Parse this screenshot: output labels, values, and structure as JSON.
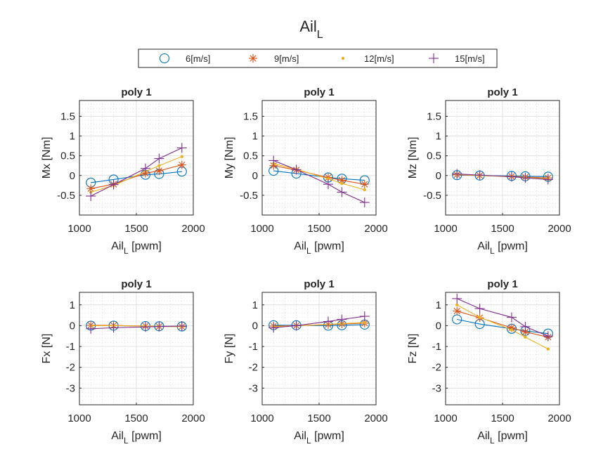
{
  "figure": {
    "title_main": "Ail",
    "title_sub": "L"
  },
  "legend": {
    "entries": [
      "6[m/s]",
      "9[m/s]",
      "12[m/s]",
      "15[m/s]"
    ]
  },
  "colors": {
    "6[m/s]": "#0072BD",
    "9[m/s]": "#D95319",
    "12[m/s]": "#EDB120",
    "15[m/s]": "#7E2F8E"
  },
  "markers": {
    "6[m/s]": "circle",
    "9[m/s]": "asterisk",
    "12[m/s]": "point",
    "15[m/s]": "plus"
  },
  "chart_data": [
    {
      "type": "line",
      "title": "poly 1",
      "xlabel_main": "Ail",
      "xlabel_sub": "L",
      "xlabel_rest": " [pwm]",
      "ylabel": "Mx [Nm]",
      "xlim": [
        1000,
        2000
      ],
      "ylim": [
        -1,
        1.9
      ],
      "xticks": [
        1000,
        1500,
        2000
      ],
      "yticks": [
        -0.5,
        0,
        0.5,
        1,
        1.5
      ],
      "ytick_labels": [
        "-0.5",
        "0",
        "0.5",
        "1",
        "1.5"
      ],
      "x": [
        1100,
        1300,
        1580,
        1700,
        1900
      ],
      "series": [
        {
          "name": "6[m/s]",
          "values": [
            -0.18,
            -0.1,
            0.02,
            0.04,
            0.1
          ]
        },
        {
          "name": "9[m/s]",
          "values": [
            -0.33,
            -0.22,
            0.06,
            0.12,
            0.27
          ]
        },
        {
          "name": "12[m/s]",
          "values": [
            -0.42,
            -0.25,
            0.1,
            0.25,
            0.48
          ]
        },
        {
          "name": "15[m/s]",
          "values": [
            -0.52,
            -0.23,
            0.18,
            0.43,
            0.7
          ]
        }
      ]
    },
    {
      "type": "line",
      "title": "poly 1",
      "xlabel_main": "Ail",
      "xlabel_sub": "L",
      "xlabel_rest": " [pwm]",
      "ylabel": "My [Nm]",
      "xlim": [
        1000,
        2000
      ],
      "ylim": [
        -1,
        1.9
      ],
      "xticks": [
        1000,
        1500,
        2000
      ],
      "yticks": [
        -0.5,
        0,
        0.5,
        1,
        1.5
      ],
      "ytick_labels": [
        "-0.5",
        "0",
        "0.5",
        "1",
        "1.5"
      ],
      "x": [
        1100,
        1300,
        1580,
        1700,
        1900
      ],
      "series": [
        {
          "name": "6[m/s]",
          "values": [
            0.12,
            0.05,
            -0.05,
            -0.08,
            -0.12
          ]
        },
        {
          "name": "9[m/s]",
          "values": [
            0.25,
            0.14,
            -0.05,
            -0.12,
            -0.22
          ]
        },
        {
          "name": "12[m/s]",
          "values": [
            0.3,
            0.16,
            -0.08,
            -0.2,
            -0.36
          ]
        },
        {
          "name": "15[m/s]",
          "values": [
            0.38,
            0.15,
            -0.22,
            -0.42,
            -0.68
          ]
        }
      ]
    },
    {
      "type": "line",
      "title": "poly 1",
      "xlabel_main": "Ail",
      "xlabel_sub": "L",
      "xlabel_rest": " [pwm]",
      "ylabel": "Mz [Nm]",
      "xlim": [
        1000,
        2000
      ],
      "ylim": [
        -1,
        1.9
      ],
      "xticks": [
        1000,
        1500,
        2000
      ],
      "yticks": [
        -0.5,
        0,
        0.5,
        1,
        1.5
      ],
      "ytick_labels": [
        "-0.5",
        "0",
        "0.5",
        "1",
        "1.5"
      ],
      "x": [
        1100,
        1300,
        1580,
        1700,
        1900
      ],
      "series": [
        {
          "name": "6[m/s]",
          "values": [
            0.01,
            0.0,
            -0.01,
            -0.02,
            -0.03
          ]
        },
        {
          "name": "9[m/s]",
          "values": [
            0.02,
            0.0,
            -0.02,
            -0.04,
            -0.06
          ]
        },
        {
          "name": "12[m/s]",
          "values": [
            0.03,
            0.0,
            -0.03,
            -0.05,
            -0.08
          ]
        },
        {
          "name": "15[m/s]",
          "values": [
            0.04,
            0.01,
            -0.03,
            -0.06,
            -0.1
          ]
        }
      ]
    },
    {
      "type": "line",
      "title": "poly 1",
      "xlabel_main": "Ail",
      "xlabel_sub": "L",
      "xlabel_rest": " [pwm]",
      "ylabel": "Fx [N]",
      "xlim": [
        1000,
        2000
      ],
      "ylim": [
        -3.8,
        1.6
      ],
      "xticks": [
        1000,
        1500,
        2000
      ],
      "yticks": [
        -3,
        -2,
        -1,
        0,
        1
      ],
      "ytick_labels": [
        "-3",
        "-2",
        "-1",
        "0",
        "1"
      ],
      "x": [
        1100,
        1300,
        1580,
        1700,
        1900
      ],
      "series": [
        {
          "name": "6[m/s]",
          "values": [
            0.0,
            0.0,
            -0.02,
            -0.03,
            -0.04
          ]
        },
        {
          "name": "9[m/s]",
          "values": [
            0.02,
            0.01,
            -0.02,
            -0.04,
            -0.05
          ]
        },
        {
          "name": "12[m/s]",
          "values": [
            0.0,
            0.0,
            -0.02,
            -0.03,
            -0.05
          ]
        },
        {
          "name": "15[m/s]",
          "values": [
            -0.15,
            -0.1,
            -0.06,
            -0.04,
            -0.02
          ]
        }
      ]
    },
    {
      "type": "line",
      "title": "poly 1",
      "xlabel_main": "Ail",
      "xlabel_sub": "L",
      "xlabel_rest": " [pwm]",
      "ylabel": "Fy [N]",
      "xlim": [
        1000,
        2000
      ],
      "ylim": [
        -3.8,
        1.6
      ],
      "xticks": [
        1000,
        1500,
        2000
      ],
      "yticks": [
        -3,
        -2,
        -1,
        0,
        1
      ],
      "ytick_labels": [
        "-3",
        "-2",
        "-1",
        "0",
        "1"
      ],
      "x": [
        1100,
        1300,
        1580,
        1700,
        1900
      ],
      "series": [
        {
          "name": "6[m/s]",
          "values": [
            0.02,
            0.02,
            0.0,
            0.02,
            0.05
          ]
        },
        {
          "name": "9[m/s]",
          "values": [
            -0.02,
            0.0,
            0.05,
            0.08,
            0.12
          ]
        },
        {
          "name": "12[m/s]",
          "values": [
            -0.05,
            0.0,
            0.06,
            0.1,
            0.15
          ]
        },
        {
          "name": "15[m/s]",
          "values": [
            -0.1,
            0.0,
            0.2,
            0.3,
            0.45
          ]
        }
      ]
    },
    {
      "type": "line",
      "title": "poly 1",
      "xlabel_main": "Ail",
      "xlabel_sub": "L",
      "xlabel_rest": " [pwm]",
      "ylabel": "Fz [N]",
      "xlim": [
        1000,
        2000
      ],
      "ylim": [
        -3.8,
        1.6
      ],
      "xticks": [
        1000,
        1500,
        2000
      ],
      "yticks": [
        -3,
        -2,
        -1,
        0,
        1
      ],
      "ytick_labels": [
        "-3",
        "-2",
        "-1",
        "0",
        "1"
      ],
      "x": [
        1100,
        1300,
        1580,
        1700,
        1900
      ],
      "series": [
        {
          "name": "6[m/s]",
          "values": [
            0.3,
            0.08,
            -0.15,
            -0.25,
            -0.38
          ]
        },
        {
          "name": "9[m/s]",
          "values": [
            0.7,
            0.38,
            -0.1,
            -0.3,
            -0.55
          ]
        },
        {
          "name": "12[m/s]",
          "values": [
            1.0,
            0.4,
            -0.2,
            -0.55,
            -1.12
          ]
        },
        {
          "name": "15[m/s]",
          "values": [
            1.3,
            0.82,
            0.4,
            -0.05,
            -0.5
          ]
        }
      ]
    }
  ]
}
